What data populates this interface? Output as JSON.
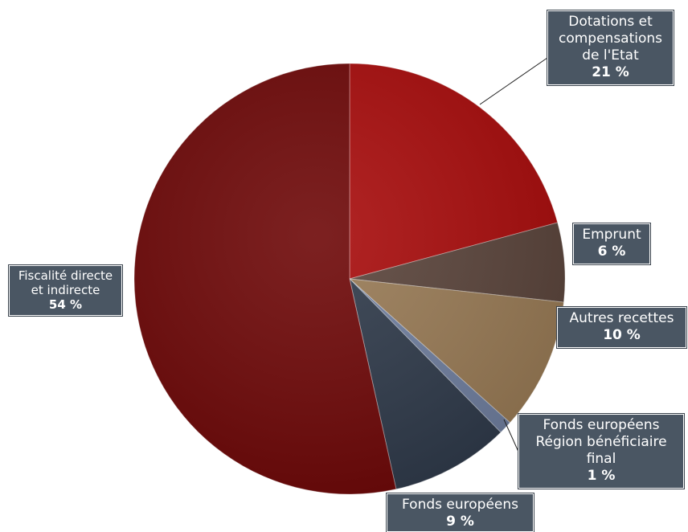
{
  "chart_data": {
    "type": "pie",
    "slices": [
      {
        "label": "Dotations et\ncompensations\nde l'Etat",
        "pct_label": "21 %",
        "value": 21,
        "color": "#a80c0c"
      },
      {
        "label": "Emprunt",
        "pct_label": "6 %",
        "value": 6,
        "color": "#5a443b"
      },
      {
        "label": "Autres recettes",
        "pct_label": "10 %",
        "value": 10,
        "color": "#987a55"
      },
      {
        "label": "Fonds européens\nRégion bénéficiaire\nfinal",
        "pct_label": "1 %",
        "value": 1,
        "color": "#6f7e9e"
      },
      {
        "label": "Fonds européens",
        "pct_label": "9  %",
        "value": 9,
        "color": "#2f3a4a"
      },
      {
        "label": "Fiscalité directe\net indirecte",
        "pct_label": "54 %",
        "value": 54,
        "color": "#6e0808"
      }
    ]
  }
}
